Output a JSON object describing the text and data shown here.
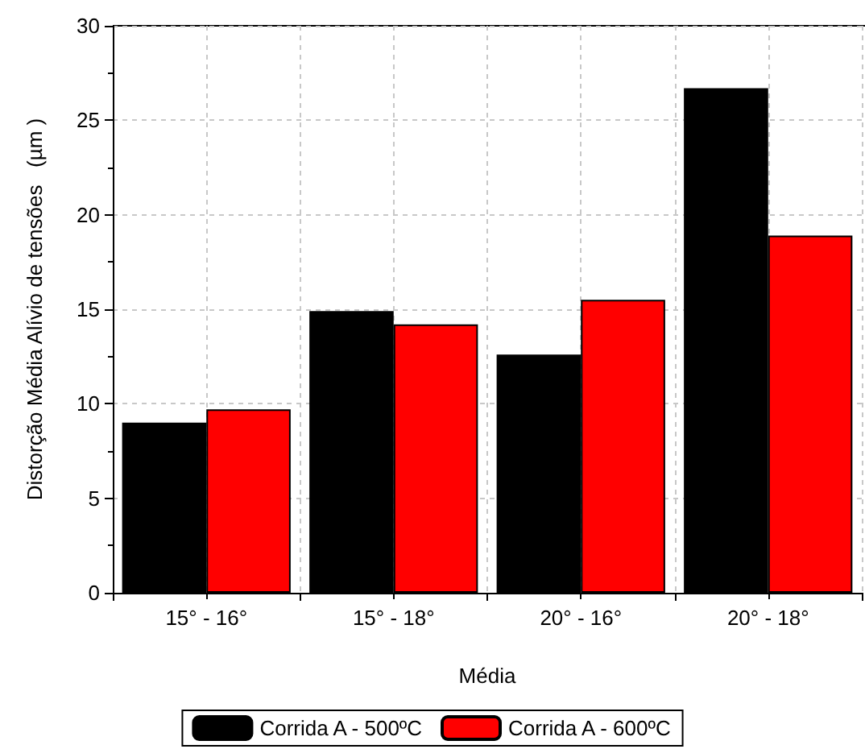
{
  "chart_data": {
    "type": "bar",
    "xlabel": "Média",
    "ylabel": "Distorção Média Alívio de tensões   (µm )",
    "categories": [
      "15° - 16°",
      "15° - 18°",
      "20° - 16°",
      "20° - 18°"
    ],
    "series": [
      {
        "name": "Corrida A - 500ºC",
        "color": "#000000",
        "values": [
          9.0,
          14.9,
          12.6,
          26.7
        ]
      },
      {
        "name": "Corrida A - 600ºC",
        "color": "#ff0000",
        "values": [
          9.7,
          14.2,
          15.5,
          18.9
        ]
      }
    ],
    "ylim": [
      0,
      30
    ],
    "yticks": [
      0,
      5,
      10,
      15,
      20,
      25,
      30
    ],
    "grid": true,
    "legend": "bottom"
  }
}
